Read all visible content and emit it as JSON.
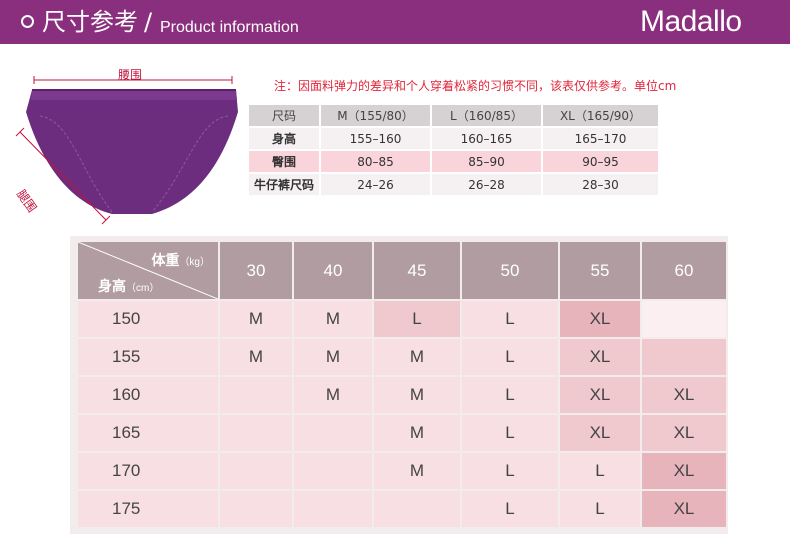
{
  "header": {
    "title_cn": "尺寸参考",
    "slash": "/",
    "title_en": "Product information",
    "brand": "Madallo"
  },
  "diagram": {
    "waist_label": "腰围",
    "leg_label": "腿围"
  },
  "note": "注：因面料弹力的差异和个人穿着松紧的习惯不同，该表仅供参考。单位cm",
  "size_table": {
    "headers": [
      "尺码",
      "M（155/80）",
      "L（160/85）",
      "XL（165/90）"
    ],
    "rows": [
      [
        "身高",
        "155–160",
        "160–165",
        "165–170"
      ],
      [
        "臀围",
        "80–85",
        "85–90",
        "90–95"
      ],
      [
        "牛仔裤尺码",
        "24–26",
        "26–28",
        "28–30"
      ]
    ]
  },
  "fit_table": {
    "weight_label": "体重",
    "weight_unit": "（kg）",
    "height_label": "身高",
    "height_unit": "（cm）",
    "weights": [
      "30",
      "40",
      "45",
      "50",
      "55",
      "60"
    ],
    "rows": [
      {
        "height": "150",
        "cells": [
          "M",
          "M",
          "L",
          "L",
          "XL",
          ""
        ]
      },
      {
        "height": "155",
        "cells": [
          "M",
          "M",
          "M",
          "L",
          "XL",
          ""
        ]
      },
      {
        "height": "160",
        "cells": [
          "",
          "M",
          "M",
          "L",
          "XL",
          "XL"
        ]
      },
      {
        "height": "165",
        "cells": [
          "",
          "",
          "M",
          "L",
          "XL",
          "XL"
        ]
      },
      {
        "height": "170",
        "cells": [
          "",
          "",
          "M",
          "L",
          "L",
          "XL"
        ]
      },
      {
        "height": "175",
        "cells": [
          "",
          "",
          "",
          "L",
          "L",
          "XL"
        ]
      }
    ]
  },
  "colors": {
    "header_bg": "#8a2f7d",
    "garment": "#6c2d7e",
    "note_red": "#e0263b"
  }
}
